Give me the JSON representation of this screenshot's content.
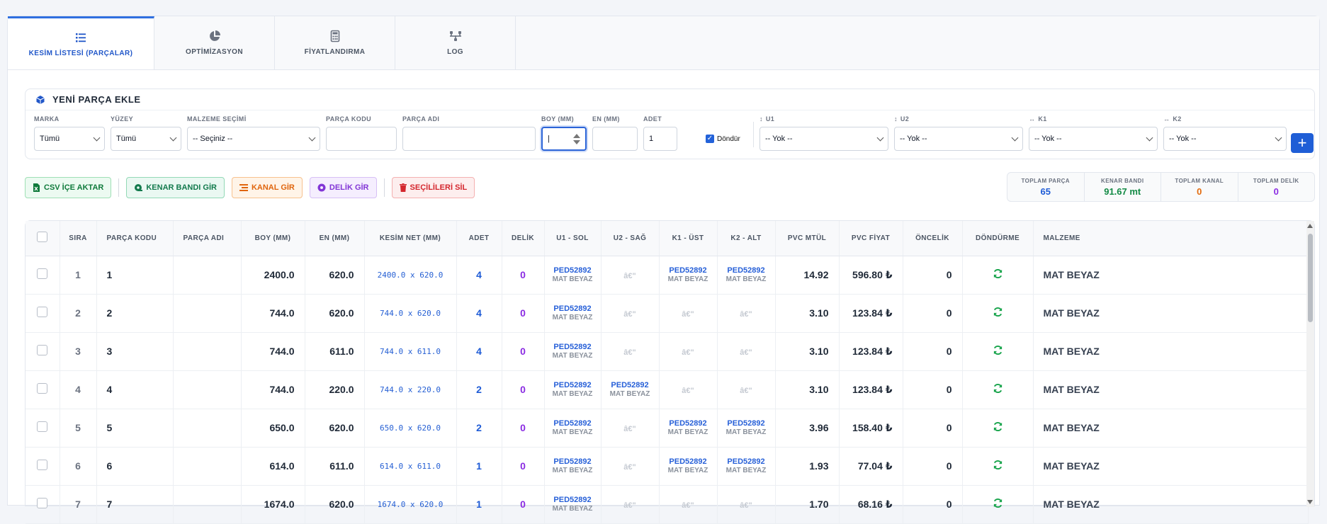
{
  "tabs": [
    {
      "label": "KESİM LİSTESİ (PARÇALAR)",
      "icon": "list-icon"
    },
    {
      "label": "OPTİMİZASYON",
      "icon": "pie-chart-icon"
    },
    {
      "label": "FİYATLANDIRMA",
      "icon": "calculator-icon"
    },
    {
      "label": "LOG",
      "icon": "network-icon"
    }
  ],
  "form": {
    "title": "YENİ PARÇA EKLE",
    "marka_label": "MARKA",
    "marka_value": "Tümü",
    "yuzey_label": "YÜZEY",
    "yuzey_value": "Tümü",
    "malzeme_label": "MALZEME SEÇİMİ",
    "malzeme_value": "-- Seçiniz --",
    "kod_label": "PARÇA KODU",
    "kod_value": "",
    "adi_label": "PARÇA ADI",
    "adi_value": "",
    "boy_label": "BOY (MM)",
    "boy_value": "|",
    "en_label": "EN (MM)",
    "en_value": "",
    "adet_label": "ADET",
    "adet_value": "1",
    "dondur_label": "Döndür",
    "u1_label": "U1",
    "u1_value": "-- Yok --",
    "u2_label": "U2",
    "u2_value": "-- Yok --",
    "k1_label": "K1",
    "k1_value": "-- Yok --",
    "k2_label": "K2",
    "k2_value": "-- Yok --",
    "add_label": "+"
  },
  "actions": {
    "csv": "CSV İÇE AKTAR",
    "kenar": "KENAR BANDI GİR",
    "kanal": "KANAL GİR",
    "delik": "DELİK GİR",
    "sil": "SEÇİLİLERİ SİL"
  },
  "stats": [
    {
      "label": "TOPLAM PARÇA",
      "value": "65",
      "color": "#1e5bd6"
    },
    {
      "label": "KENAR BANDI",
      "value": "91.67 mt",
      "color": "#138a45"
    },
    {
      "label": "TOPLAM KANAL",
      "value": "0",
      "color": "#e36a0c"
    },
    {
      "label": "TOPLAM DELİK",
      "value": "0",
      "color": "#8a2be2"
    }
  ],
  "table": {
    "headers": [
      "SIRA",
      "PARÇA KODU",
      "PARÇA ADI",
      "BOY (MM)",
      "EN (MM)",
      "KESİM NET (MM)",
      "ADET",
      "DELİK",
      "U1 - SOL",
      "U2 - SAĞ",
      "K1 - ÜST",
      "K2 - ALT",
      "PVC MTÜL",
      "PVC FİYAT",
      "ÖNCELİK",
      "DÖNDÜRME",
      "MALZEME"
    ],
    "edge_code": "PED52892",
    "edge_material": "MAT BEYAZ",
    "empty_edge": "â€\"",
    "rows": [
      {
        "sira": "1",
        "kod": "1",
        "adi": "",
        "boy": "2400.0",
        "en": "620.0",
        "net": "2400.0 x 620.0",
        "adet": "4",
        "delik": "0",
        "u1": true,
        "u2": false,
        "k1": true,
        "k2": true,
        "mtul": "14.92",
        "fiyat": "596.80 ₺",
        "oncelik": "0",
        "malzeme": "MAT BEYAZ"
      },
      {
        "sira": "2",
        "kod": "2",
        "adi": "",
        "boy": "744.0",
        "en": "620.0",
        "net": "744.0 x 620.0",
        "adet": "4",
        "delik": "0",
        "u1": true,
        "u2": false,
        "k1": false,
        "k2": false,
        "mtul": "3.10",
        "fiyat": "123.84 ₺",
        "oncelik": "0",
        "malzeme": "MAT BEYAZ"
      },
      {
        "sira": "3",
        "kod": "3",
        "adi": "",
        "boy": "744.0",
        "en": "611.0",
        "net": "744.0 x 611.0",
        "adet": "4",
        "delik": "0",
        "u1": true,
        "u2": false,
        "k1": false,
        "k2": false,
        "mtul": "3.10",
        "fiyat": "123.84 ₺",
        "oncelik": "0",
        "malzeme": "MAT BEYAZ"
      },
      {
        "sira": "4",
        "kod": "4",
        "adi": "",
        "boy": "744.0",
        "en": "220.0",
        "net": "744.0 x 220.0",
        "adet": "2",
        "delik": "0",
        "u1": true,
        "u2": true,
        "k1": false,
        "k2": false,
        "mtul": "3.10",
        "fiyat": "123.84 ₺",
        "oncelik": "0",
        "malzeme": "MAT BEYAZ"
      },
      {
        "sira": "5",
        "kod": "5",
        "adi": "",
        "boy": "650.0",
        "en": "620.0",
        "net": "650.0 x 620.0",
        "adet": "2",
        "delik": "0",
        "u1": true,
        "u2": false,
        "k1": true,
        "k2": true,
        "mtul": "3.96",
        "fiyat": "158.40 ₺",
        "oncelik": "0",
        "malzeme": "MAT BEYAZ"
      },
      {
        "sira": "6",
        "kod": "6",
        "adi": "",
        "boy": "614.0",
        "en": "611.0",
        "net": "614.0 x 611.0",
        "adet": "1",
        "delik": "0",
        "u1": true,
        "u2": false,
        "k1": true,
        "k2": true,
        "mtul": "1.93",
        "fiyat": "77.04 ₺",
        "oncelik": "0",
        "malzeme": "MAT BEYAZ"
      },
      {
        "sira": "7",
        "kod": "7",
        "adi": "",
        "boy": "1674.0",
        "en": "620.0",
        "net": "1674.0 x 620.0",
        "adet": "1",
        "delik": "0",
        "u1": true,
        "u2": false,
        "k1": false,
        "k2": false,
        "mtul": "1.70",
        "fiyat": "68.16 ₺",
        "oncelik": "0",
        "malzeme": "MAT BEYAZ"
      }
    ]
  }
}
